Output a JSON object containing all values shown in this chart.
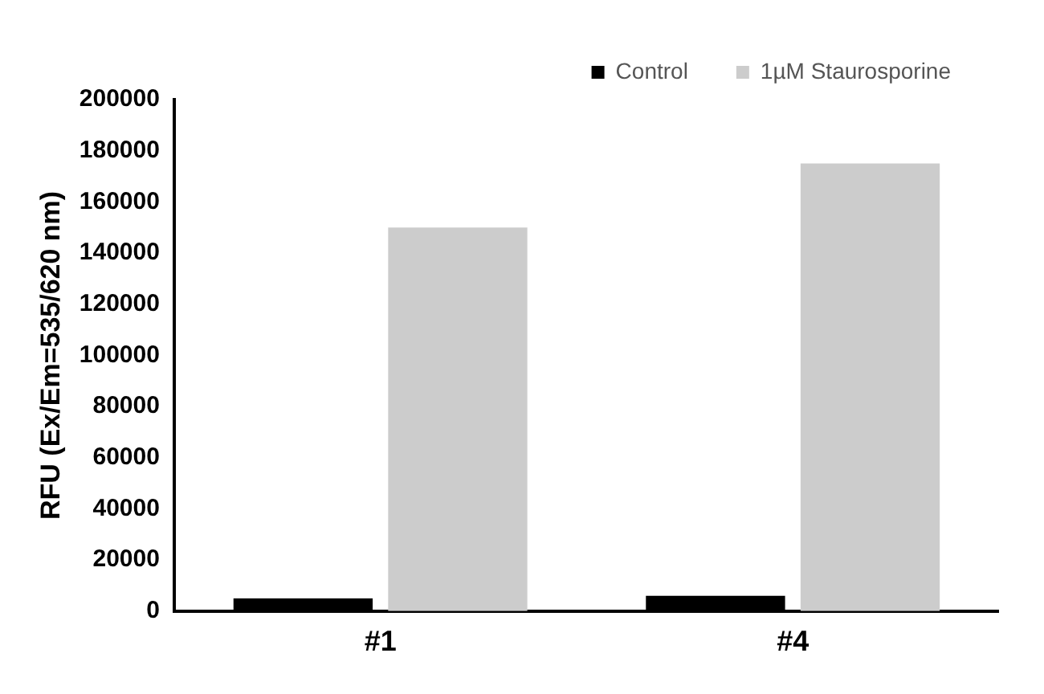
{
  "chart_data": {
    "type": "bar",
    "ylabel": "RFU (Ex/Em=535/620 nm)",
    "categories": [
      "#1",
      "#4"
    ],
    "series": [
      {
        "name": "Control",
        "color": "#000000",
        "values": [
          5000,
          6000
        ]
      },
      {
        "name": "1µM Staurosporine",
        "color": "#cccccc",
        "values": [
          150000,
          175000
        ]
      }
    ],
    "ylim": [
      0,
      200000
    ],
    "yticks": [
      0,
      20000,
      40000,
      60000,
      80000,
      100000,
      120000,
      140000,
      160000,
      180000,
      200000
    ],
    "grid": false,
    "legend": "top right"
  }
}
